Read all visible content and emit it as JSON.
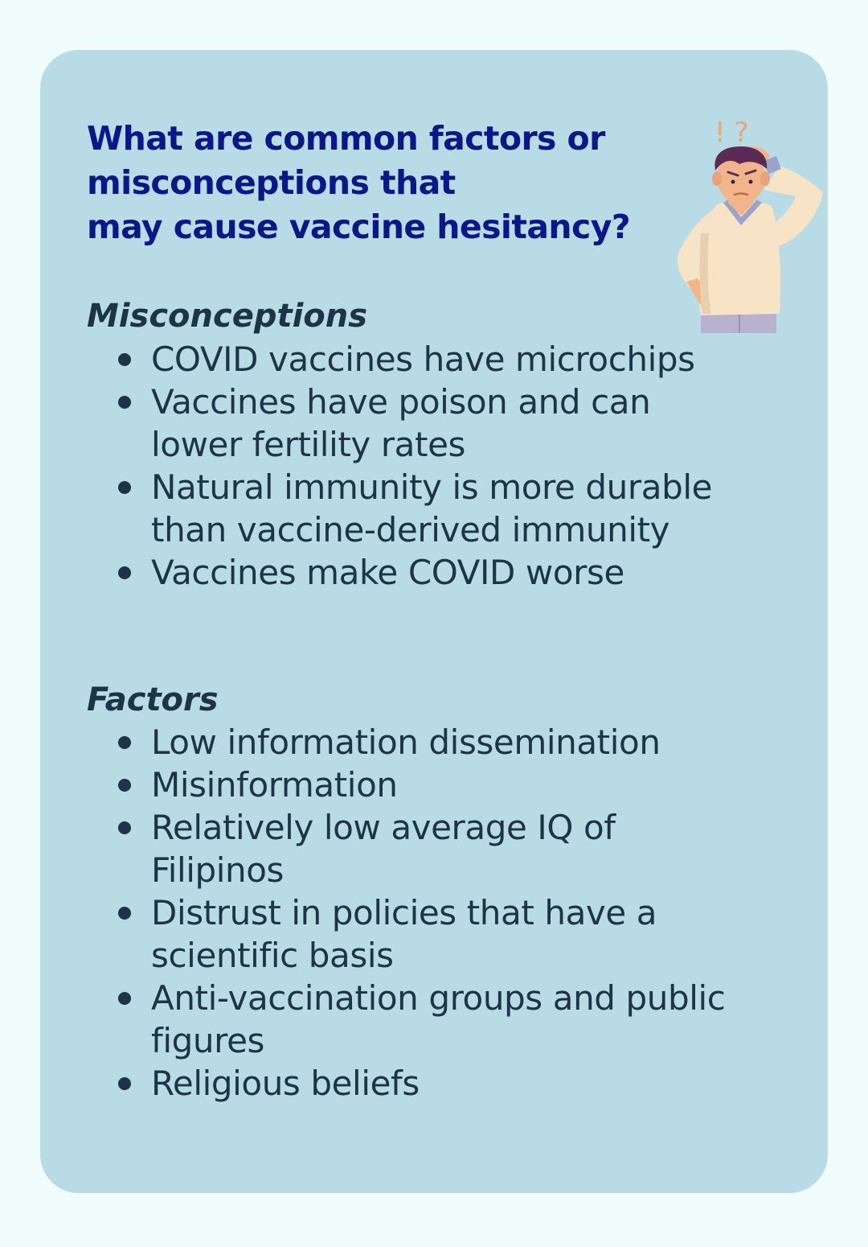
{
  "title_lines": [
    "What are common factors or",
    "misconceptions that",
    "may cause vaccine hesitancy?"
  ],
  "misconceptions": {
    "heading": "Misconceptions",
    "items": [
      {
        "lines": [
          "COVID vaccines have microchips"
        ]
      },
      {
        "lines": [
          "Vaccines have poison and can",
          "lower fertility rates"
        ]
      },
      {
        "lines": [
          "Natural immunity is more durable",
          "than vaccine-derived immunity"
        ]
      },
      {
        "lines": [
          "Vaccines make COVID worse"
        ]
      }
    ]
  },
  "factors": {
    "heading": "Factors",
    "items": [
      {
        "lines": [
          "Low information dissemination"
        ]
      },
      {
        "lines": [
          "Misinformation"
        ]
      },
      {
        "lines": [
          "Relatively low average IQ of",
          "Filipinos"
        ]
      },
      {
        "lines": [
          "Distrust in policies that have a",
          "scientific basis"
        ]
      },
      {
        "lines": [
          "Anti-vaccination groups and public",
          "figures"
        ]
      },
      {
        "lines": [
          "Religious beliefs"
        ]
      }
    ]
  },
  "illustration": {
    "marks": "! ?",
    "icon": "confused-person-icon"
  },
  "colors": {
    "page_background": "#f1fdfd",
    "card_background": "#b8dbe6",
    "title": "#0b1688",
    "body_text": "#1d3347",
    "marks": "#e7a57a"
  }
}
